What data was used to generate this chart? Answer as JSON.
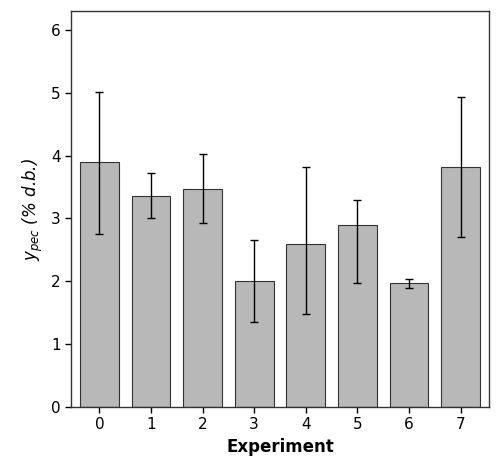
{
  "categories": [
    0,
    1,
    2,
    3,
    4,
    5,
    6,
    7
  ],
  "bar_heights": [
    3.9,
    3.35,
    3.47,
    2.0,
    2.6,
    2.9,
    1.97,
    3.82
  ],
  "error_lower": [
    1.15,
    0.35,
    0.55,
    0.65,
    1.12,
    0.92,
    0.07,
    1.12
  ],
  "error_upper": [
    1.12,
    0.37,
    0.55,
    0.65,
    1.22,
    0.4,
    0.07,
    1.12
  ],
  "bar_color": "#b8b8b8",
  "bar_edgecolor": "#333333",
  "xlabel": "Experiment",
  "ylabel": "$y_{pec}$ (% d.b.)",
  "ylim": [
    0,
    6.3
  ],
  "yticks": [
    0,
    1,
    2,
    3,
    4,
    5,
    6
  ],
  "background_color": "#ffffff",
  "bar_width": 0.75,
  "capsize": 3,
  "tick_fontsize": 11,
  "label_fontsize": 12
}
